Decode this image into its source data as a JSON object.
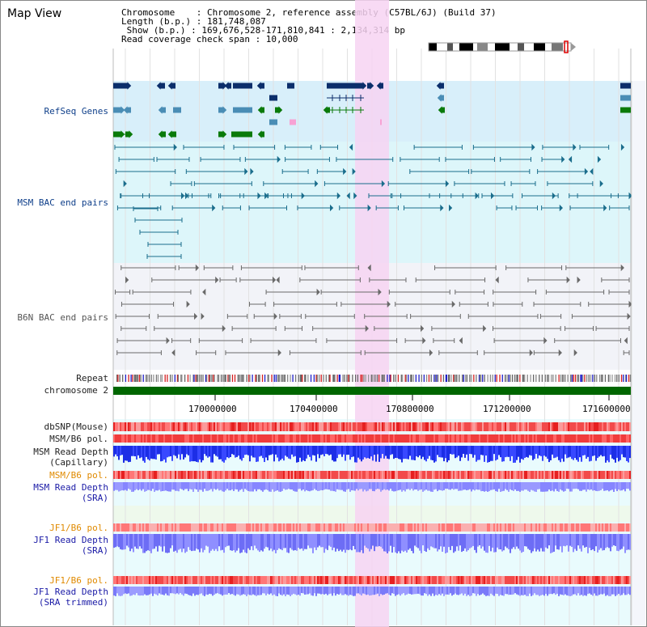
{
  "header": {
    "title": "Map View",
    "info_lines": [
      "Chromosome    : Chromosome 2, reference assembly (C57BL/6J) (Build 37)",
      "Length (b.p.) : 181,748,087",
      " Show (b.p.) : 169,676,528-171,810,841 : 2,134,314 bp",
      "Read coverage check span : 10,000"
    ]
  },
  "tracks": {
    "refseq": "RefSeq Genes",
    "msm_bac": "MSM BAC end pairs",
    "b6n_bac": "B6N BAC end pairs",
    "repeat": "Repeat",
    "chromosome": "chromosome 2",
    "dbsnp": "dbSNP(Mouse)",
    "msm_b6_pol_1": "MSM/B6 pol.",
    "msm_read_depth_cap_1": "MSM Read Depth",
    "msm_read_depth_cap_2": "(Capillary)",
    "msm_b6_pol_2": "MSM/B6 pol.",
    "msm_read_depth_sra_1": "MSM Read Depth",
    "msm_read_depth_sra_2": "(SRA)",
    "jf1_b6_pol_1": "JF1/B6 pol.",
    "jf1_read_depth_sra_1": "JF1 Read Depth",
    "jf1_read_depth_sra_2": "(SRA)",
    "jf1_b6_pol_2": "JF1/B6 pol.",
    "jf1_read_depth_trim_1": "JF1 Read Depth",
    "jf1_read_depth_trim_2": "(SRA trimmed)"
  },
  "axis": {
    "ticks": [
      "170000000",
      "170400000",
      "170800000",
      "171200000",
      "171600000"
    ]
  },
  "colors": {
    "highlight": "#f7d3f2",
    "refseq_bg": "#d8effa",
    "msm_bg": "#ddf6fa",
    "b6n_bg": "#f2f3f8",
    "chrom": "#006600",
    "navy": "#0b2e6b",
    "teal": "#1a6d8c",
    "green": "#0a7a0a",
    "depth_blue": "#1f2fe0",
    "depth_light": "#7b7bff"
  }
}
